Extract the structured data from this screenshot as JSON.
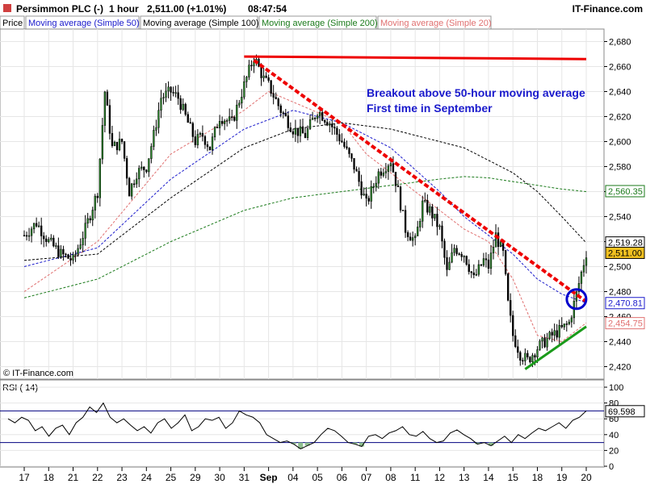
{
  "header": {
    "instrument": "Persimmon PLC (-)",
    "interval": "1 hour",
    "quote": "2,511.00 (+1.01%)",
    "time": "08:47:54",
    "brand": "IT-Finance.com"
  },
  "legend": [
    {
      "label": "Price",
      "color": "#000000"
    },
    {
      "label": "Moving average (Simple 50)",
      "color": "#1a1acc"
    },
    {
      "label": "Moving average (Simple 100)",
      "color": "#000000"
    },
    {
      "label": "Moving average (Simple 200)",
      "color": "#1a7a1a"
    },
    {
      "label": "Moving average (Simple 20)",
      "color": "#e07070"
    }
  ],
  "watermark": "© IT-Finance.com",
  "annotation": {
    "line1": "Breakout above 50-hour moving average",
    "line2": "First time in September",
    "color": "#1a1acc"
  },
  "colors": {
    "up": "#2e8b2e",
    "down": "#000000",
    "resistance": "#ee0000",
    "support": "#1a9a1a",
    "circle": "#0000cc"
  },
  "chart_data": {
    "type": "line",
    "y_axis": {
      "min": 2410,
      "max": 2690,
      "ticks": [
        2420,
        2440,
        2460,
        2480,
        2500,
        2520,
        2540,
        2560,
        2580,
        2600,
        2620,
        2640,
        2660,
        2680
      ]
    },
    "x_labels": [
      "17",
      "18",
      "21",
      "22",
      "23",
      "24",
      "25",
      "29",
      "30",
      "31",
      "Sep",
      "04",
      "05",
      "06",
      "07",
      "08",
      "11",
      "12",
      "13",
      "14",
      "15",
      "18",
      "19",
      "20"
    ],
    "price_path": [
      [
        0,
        2525
      ],
      [
        0.5,
        2535
      ],
      [
        1,
        2520
      ],
      [
        1.5,
        2510
      ],
      [
        2,
        2505
      ],
      [
        2.5,
        2530
      ],
      [
        3,
        2560
      ],
      [
        3.3,
        2640
      ],
      [
        3.6,
        2595
      ],
      [
        4,
        2600
      ],
      [
        4.3,
        2560
      ],
      [
        4.6,
        2575
      ],
      [
        5,
        2580
      ],
      [
        5.3,
        2605
      ],
      [
        5.6,
        2635
      ],
      [
        6,
        2640
      ],
      [
        6.3,
        2635
      ],
      [
        6.6,
        2620
      ],
      [
        7,
        2600
      ],
      [
        7.3,
        2605
      ],
      [
        7.6,
        2595
      ],
      [
        8,
        2620
      ],
      [
        8.5,
        2615
      ],
      [
        9,
        2645
      ],
      [
        9.4,
        2668
      ],
      [
        9.8,
        2650
      ],
      [
        10,
        2645
      ],
      [
        10.5,
        2625
      ],
      [
        11,
        2610
      ],
      [
        11.5,
        2605
      ],
      [
        12,
        2625
      ],
      [
        12.5,
        2615
      ],
      [
        13,
        2600
      ],
      [
        13.5,
        2580
      ],
      [
        14,
        2550
      ],
      [
        14.5,
        2575
      ],
      [
        15,
        2585
      ],
      [
        15.3,
        2560
      ],
      [
        15.6,
        2530
      ],
      [
        16,
        2520
      ],
      [
        16.3,
        2550
      ],
      [
        16.6,
        2545
      ],
      [
        17,
        2530
      ],
      [
        17.3,
        2495
      ],
      [
        17.6,
        2515
      ],
      [
        18,
        2510
      ],
      [
        18.4,
        2490
      ],
      [
        18.8,
        2505
      ],
      [
        19,
        2500
      ],
      [
        19.3,
        2525
      ],
      [
        19.6,
        2510
      ],
      [
        19.8,
        2470
      ],
      [
        20,
        2445
      ],
      [
        20.3,
        2430
      ],
      [
        20.6,
        2425
      ],
      [
        21,
        2435
      ],
      [
        21.3,
        2440
      ],
      [
        21.6,
        2445
      ],
      [
        22,
        2450
      ],
      [
        22.3,
        2455
      ],
      [
        22.6,
        2478
      ],
      [
        22.8,
        2495
      ],
      [
        23,
        2511
      ]
    ],
    "ma_points": {
      "sma20": [
        [
          0,
          2480
        ],
        [
          3,
          2520
        ],
        [
          6,
          2590
        ],
        [
          9,
          2625
        ],
        [
          10,
          2640
        ],
        [
          13,
          2615
        ],
        [
          14,
          2590
        ],
        [
          16,
          2560
        ],
        [
          18,
          2530
        ],
        [
          19,
          2520
        ],
        [
          20,
          2490
        ],
        [
          21,
          2445
        ],
        [
          22,
          2440
        ],
        [
          23,
          2455
        ]
      ],
      "sma50": [
        [
          0,
          2500
        ],
        [
          3,
          2515
        ],
        [
          6,
          2570
        ],
        [
          9,
          2610
        ],
        [
          11,
          2625
        ],
        [
          13,
          2615
        ],
        [
          15,
          2595
        ],
        [
          17,
          2560
        ],
        [
          18,
          2540
        ],
        [
          19,
          2525
        ],
        [
          20,
          2510
        ],
        [
          21,
          2490
        ],
        [
          22,
          2478
        ],
        [
          23,
          2471
        ]
      ],
      "sma100": [
        [
          0,
          2505
        ],
        [
          3,
          2510
        ],
        [
          6,
          2555
        ],
        [
          9,
          2595
        ],
        [
          11,
          2610
        ],
        [
          13,
          2615
        ],
        [
          15,
          2610
        ],
        [
          17,
          2600
        ],
        [
          18,
          2595
        ],
        [
          19,
          2585
        ],
        [
          20,
          2575
        ],
        [
          21,
          2560
        ],
        [
          22,
          2540
        ],
        [
          23,
          2519
        ]
      ],
      "sma200": [
        [
          0,
          2475
        ],
        [
          3,
          2490
        ],
        [
          6,
          2520
        ],
        [
          9,
          2545
        ],
        [
          11,
          2555
        ],
        [
          13,
          2560
        ],
        [
          15,
          2565
        ],
        [
          17,
          2570
        ],
        [
          18,
          2572
        ],
        [
          19,
          2571
        ],
        [
          20,
          2568
        ],
        [
          21,
          2565
        ],
        [
          22,
          2562
        ],
        [
          23,
          2560
        ]
      ]
    },
    "value_labels": [
      {
        "text": "2,519.28",
        "value": 2519.28,
        "color": "#000000",
        "fill": "#ffffff"
      },
      {
        "text": "2,511.00",
        "value": 2511.0,
        "color": "#000000",
        "fill": "#f0c020"
      },
      {
        "text": "2,470.81",
        "value": 2470.81,
        "color": "#1a1acc",
        "fill": "#ffffff"
      },
      {
        "text": "2,454.75",
        "value": 2454.75,
        "color": "#e07070",
        "fill": "#ffffff"
      },
      {
        "text": "2,560.35",
        "value": 2560.35,
        "color": "#1a7a1a",
        "fill": "#ffffff"
      }
    ],
    "rsi": {
      "title": "RSI ( 14)",
      "y_axis": {
        "min": 0,
        "max": 100,
        "ticks": [
          100,
          80,
          60,
          40,
          20,
          0
        ]
      },
      "levels": [
        70,
        30
      ],
      "current_label": "69.598",
      "current": 69.598,
      "values": [
        60,
        55,
        62,
        58,
        45,
        50,
        38,
        48,
        52,
        40,
        55,
        62,
        75,
        68,
        80,
        62,
        55,
        60,
        52,
        45,
        50,
        42,
        55,
        60,
        48,
        55,
        65,
        45,
        50,
        60,
        58,
        62,
        48,
        55,
        70,
        65,
        62,
        55,
        40,
        35,
        30,
        32,
        28,
        22,
        26,
        30,
        40,
        48,
        45,
        38,
        30,
        28,
        25,
        38,
        40,
        35,
        42,
        45,
        50,
        40,
        38,
        44,
        35,
        30,
        32,
        42,
        46,
        40,
        35,
        28,
        30,
        26,
        32,
        38,
        30,
        40,
        35,
        42,
        48,
        45,
        50,
        55,
        48,
        58,
        62,
        70
      ]
    }
  }
}
